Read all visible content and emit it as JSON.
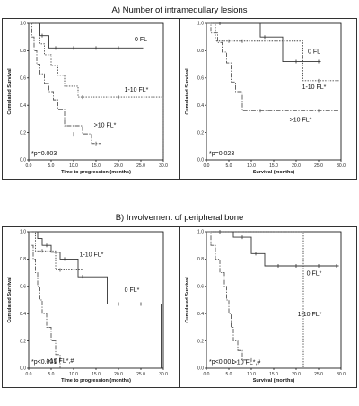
{
  "sections": [
    {
      "title": "A) Number of intramedullary lesions"
    },
    {
      "title": "B) Involvement  of peripheral bone"
    }
  ],
  "chart_data": [
    {
      "type": "line",
      "subtype": "kaplan-meier",
      "section": "A",
      "xlabel": "Time to progression (months)",
      "ylabel": "Cumulated Survival",
      "xlim": [
        0,
        30
      ],
      "ylim": [
        0,
        1.0
      ],
      "xticks": [
        "0.0",
        "5.0",
        "10.0",
        "15.0",
        "20.0",
        "25.0",
        "30.0"
      ],
      "yticks": [
        "0.0",
        "0.2",
        "0.4",
        "0.6",
        "0.8",
        "1.0"
      ],
      "grid": false,
      "annotation": "*p=0.003",
      "series": [
        {
          "name": "0 FL",
          "style": "solid",
          "x": [
            0,
            2.5,
            4.5,
            25.5
          ],
          "y": [
            1.0,
            0.91,
            0.82,
            0.82
          ],
          "censored": [
            [
              3,
              0.91
            ],
            [
              6,
              0.82
            ],
            [
              10,
              0.82
            ],
            [
              15,
              0.82
            ],
            [
              20,
              0.82
            ]
          ],
          "label_at": [
            25,
            0.87
          ]
        },
        {
          "name": "1-10 FL*",
          "style": "dotted",
          "x": [
            0,
            2.5,
            3.5,
            5,
            6.5,
            8,
            11,
            29.5,
            30
          ],
          "y": [
            1.0,
            0.85,
            0.77,
            0.69,
            0.62,
            0.54,
            0.46,
            0.46,
            0.0
          ],
          "censored": [
            [
              12,
              0.46
            ],
            [
              20,
              0.46
            ]
          ],
          "label_at": [
            24,
            0.5
          ]
        },
        {
          "name": ">10 FL*",
          "style": "dashdot",
          "x": [
            0,
            0.7,
            1.2,
            1.8,
            2.5,
            3.5,
            4.5,
            5.5,
            6.5,
            8,
            12,
            14,
            16
          ],
          "y": [
            1.0,
            0.9,
            0.8,
            0.7,
            0.63,
            0.56,
            0.5,
            0.44,
            0.37,
            0.25,
            0.19,
            0.12,
            0.12
          ],
          "censored": [
            [
              10,
              0.19
            ],
            [
              15,
              0.12
            ]
          ],
          "label_at": [
            17,
            0.24
          ]
        }
      ]
    },
    {
      "type": "line",
      "subtype": "kaplan-meier",
      "section": "A",
      "xlabel": "Survival (months)",
      "ylabel": "Cumulated Survival",
      "xlim": [
        0,
        30
      ],
      "ylim": [
        0,
        1.0
      ],
      "xticks": [
        "0.0",
        "5.0",
        "10.0",
        "15.0",
        "20.0",
        "25.0",
        "30.0"
      ],
      "yticks": [
        "0.0",
        "0.2",
        "0.4",
        "0.6",
        "0.8",
        "1.0"
      ],
      "grid": false,
      "annotation": "*p=0.023",
      "series": [
        {
          "name": "0 FL",
          "style": "solid",
          "x": [
            0,
            10,
            12,
            17,
            25.5
          ],
          "y": [
            1.0,
            1.0,
            0.9,
            0.72,
            0.72
          ],
          "censored": [
            [
              3,
              1.0
            ],
            [
              13,
              0.9
            ],
            [
              20,
              0.72
            ],
            [
              25,
              0.72
            ]
          ],
          "label_at": [
            24,
            0.78
          ]
        },
        {
          "name": "1-10 FL*",
          "style": "dotted",
          "x": [
            0,
            2,
            21.5,
            29.5
          ],
          "y": [
            1.0,
            0.87,
            0.58,
            0.58
          ],
          "censored": [
            [
              5,
              0.87
            ],
            [
              8,
              0.87
            ],
            [
              25,
              0.58
            ]
          ],
          "label_at": [
            24,
            0.52
          ]
        },
        {
          "name": ">10 FL*",
          "style": "dashdot",
          "x": [
            0,
            1,
            2.5,
            3.5,
            4.5,
            5.5,
            6.5,
            8,
            29.5
          ],
          "y": [
            1.0,
            0.93,
            0.86,
            0.79,
            0.71,
            0.57,
            0.5,
            0.36,
            0.36
          ],
          "censored": [
            [
              12,
              0.36
            ],
            [
              25,
              0.36
            ]
          ],
          "label_at": [
            21,
            0.28
          ]
        }
      ]
    },
    {
      "type": "line",
      "subtype": "kaplan-meier",
      "section": "B",
      "xlabel": "Time to progression (months)",
      "ylabel": "Cumulated Survival",
      "xlim": [
        0,
        30
      ],
      "ylim": [
        0,
        1.0
      ],
      "xticks": [
        "0.0",
        "5.0",
        "10.0",
        "15.0",
        "20.0",
        "25.0",
        "30.0"
      ],
      "yticks": [
        "0.0",
        "0.2",
        "0.4",
        "0.6",
        "0.8",
        "1.0"
      ],
      "grid": false,
      "annotation": "*p<0.001",
      "series": [
        {
          "name": "0 FL*",
          "style": "solid",
          "x": [
            0,
            2,
            3,
            5,
            7,
            11,
            17.5,
            29,
            29.5
          ],
          "y": [
            1.0,
            0.95,
            0.9,
            0.85,
            0.8,
            0.67,
            0.47,
            0.47,
            0.0
          ],
          "censored": [
            [
              4,
              0.9
            ],
            [
              8,
              0.8
            ],
            [
              12,
              0.67
            ],
            [
              20,
              0.47
            ],
            [
              25,
              0.47
            ]
          ],
          "label_at": [
            23,
            0.56
          ]
        },
        {
          "name": "1-10 FL*",
          "style": "dotted",
          "x": [
            0,
            1.5,
            4,
            6,
            9,
            12
          ],
          "y": [
            1.0,
            0.86,
            0.86,
            0.72,
            0.72,
            0.72
          ],
          "censored": [
            [
              3,
              0.86
            ],
            [
              7,
              0.72
            ],
            [
              11,
              0.72
            ]
          ],
          "label_at": [
            14,
            0.82
          ]
        },
        {
          "name": ">10 FL*,#",
          "style": "dashdot",
          "x": [
            0,
            0.5,
            1,
            1.5,
            2,
            2.5,
            3,
            4,
            5,
            6,
            7
          ],
          "y": [
            1.0,
            0.9,
            0.8,
            0.7,
            0.6,
            0.5,
            0.4,
            0.3,
            0.2,
            0.1,
            0.0
          ],
          "censored": [],
          "label_at": [
            7,
            0.04
          ]
        }
      ]
    },
    {
      "type": "line",
      "subtype": "kaplan-meier",
      "section": "B",
      "xlabel": "Survival (months)",
      "ylabel": "Cumulated Survival",
      "xlim": [
        0,
        30
      ],
      "ylim": [
        0,
        1.0
      ],
      "xticks": [
        "0.0",
        "5.0",
        "10.0",
        "15.0",
        "20.0",
        "25.0",
        "30.0"
      ],
      "yticks": [
        "0.0",
        "0.2",
        "0.4",
        "0.6",
        "0.8",
        "1.0"
      ],
      "grid": false,
      "annotation": "*p<0.001",
      "series": [
        {
          "name": "0 FL*",
          "style": "solid",
          "x": [
            0,
            6,
            10,
            13,
            29.5
          ],
          "y": [
            1.0,
            0.96,
            0.84,
            0.75,
            0.75
          ],
          "censored": [
            [
              3,
              1.0
            ],
            [
              8,
              0.96
            ],
            [
              11,
              0.84
            ],
            [
              16,
              0.75
            ],
            [
              20,
              0.75
            ],
            [
              25,
              0.75
            ],
            [
              29,
              0.75
            ]
          ],
          "label_at": [
            24,
            0.68
          ]
        },
        {
          "name": "1-10 FL*",
          "style": "dotted",
          "x": [
            0,
            21.5,
            21.6
          ],
          "y": [
            1.0,
            1.0,
            0.0
          ],
          "censored": [],
          "label_at": [
            23,
            0.38
          ]
        },
        {
          "name": ">10 FL*,#",
          "style": "dashdot",
          "x": [
            0,
            1,
            2,
            3,
            4,
            4.5,
            5,
            5.5,
            6,
            7,
            8,
            9
          ],
          "y": [
            1.0,
            0.9,
            0.8,
            0.7,
            0.6,
            0.5,
            0.4,
            0.3,
            0.2,
            0.13,
            0.06,
            0.06
          ],
          "censored": [
            [
              10,
              0.06
            ]
          ],
          "label_at": [
            9,
            0.03
          ]
        }
      ]
    }
  ]
}
